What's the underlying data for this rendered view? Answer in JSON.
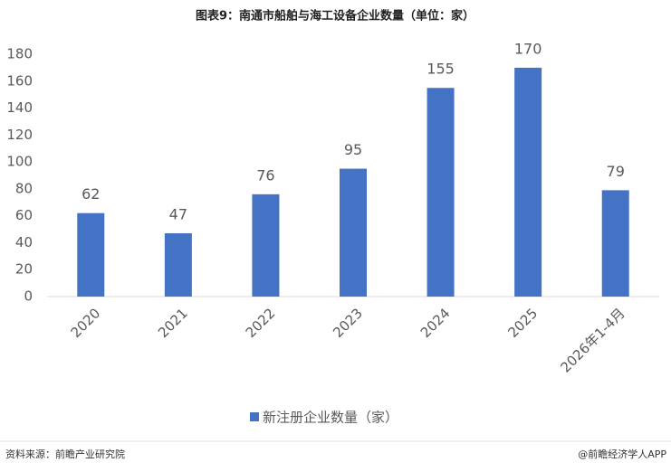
{
  "chart_data": {
    "type": "bar",
    "title": "图表9：南通市船舶与海工设备企业数量（单位：家）",
    "categories": [
      "2020",
      "2021",
      "2022",
      "2023",
      "2024",
      "2025",
      "2026年1-4月"
    ],
    "series": [
      {
        "name": "新注册企业数量（家）",
        "color": "#4472c4",
        "values": [
          62,
          47,
          76,
          95,
          155,
          170,
          79
        ]
      }
    ],
    "ylim": [
      0,
      180
    ],
    "yticks": [
      0,
      20,
      40,
      60,
      80,
      100,
      120,
      140,
      160,
      180
    ],
    "grid": false,
    "legend": "bottom"
  },
  "footer": {
    "source": "资料来源：前瞻产业研究院",
    "credit": "@前瞻经济学人APP"
  }
}
